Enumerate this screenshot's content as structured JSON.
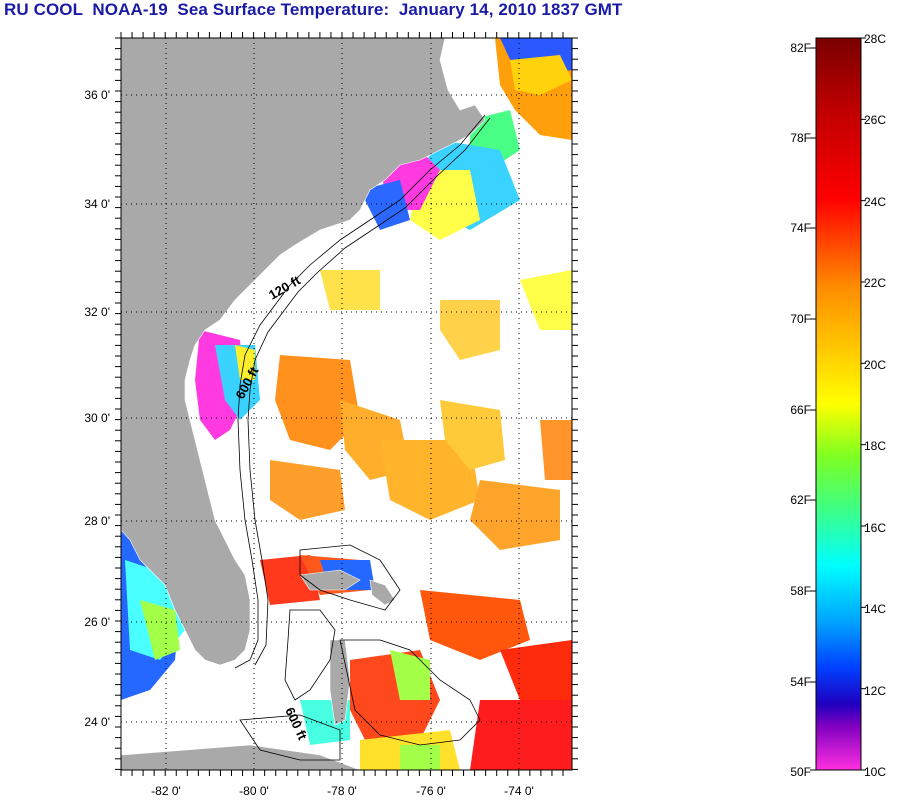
{
  "title": "RU COOL  NOAA-19  Sea Surface Temperature:  January 14, 2010 1837 GMT",
  "map": {
    "lat_labels": [
      "36 0'",
      "34 0'",
      "32 0'",
      "30 0'",
      "28 0'",
      "26 0'",
      "24 0'"
    ],
    "lon_labels": [
      "-82 0'",
      "-80 0'",
      "-78 0'",
      "-76 0'",
      "-74 0'"
    ],
    "isobath_labels": [
      "120 ft",
      "600 ft",
      "600 ft"
    ],
    "colors": {
      "land": "#a9a9a9",
      "ocean_missing": "#ffffff",
      "grid": "#000000"
    }
  },
  "colorbar": {
    "f_labels": [
      "82F",
      "78F",
      "74F",
      "70F",
      "66F",
      "62F",
      "58F",
      "54F",
      "50F"
    ],
    "c_labels": [
      "28C",
      "26C",
      "24C",
      "22C",
      "20C",
      "18C",
      "16C",
      "14C",
      "12C",
      "10C"
    ],
    "stops": [
      "#7a0000",
      "#ff0000",
      "#ff8c00",
      "#ffff00",
      "#40ff40",
      "#00ffff",
      "#0050ff",
      "#0000cc",
      "#8000c0",
      "#ff20e0"
    ]
  }
}
